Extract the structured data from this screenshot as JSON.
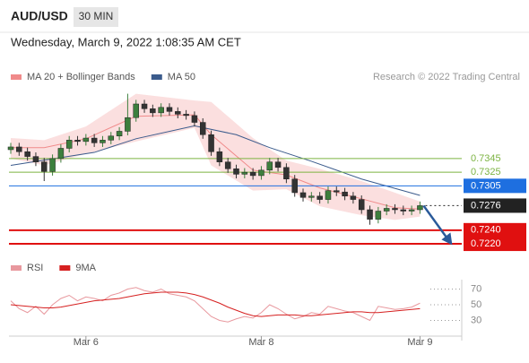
{
  "header": {
    "symbol": "AUD/USD",
    "interval": "30 MIN",
    "timestamp": "Wednesday, March 9, 2022 1:08:35 AM CET",
    "credit": "Research © 2022 Trading Central"
  },
  "chart_data": [
    {
      "type": "candlestick",
      "xlim": [
        0,
        54
      ],
      "ylim": [
        0.7203,
        0.7446
      ],
      "up_color": "#3d7f3d",
      "down_color": "#333333",
      "open": [
        0.7358,
        0.7362,
        0.7355,
        0.7348,
        0.734,
        0.7326,
        0.7345,
        0.736,
        0.7372,
        0.737,
        0.7375,
        0.7368,
        0.7372,
        0.7378,
        0.7385,
        0.7405,
        0.7425,
        0.7418,
        0.7412,
        0.742,
        0.7414,
        0.741,
        0.7408,
        0.7398,
        0.738,
        0.7355,
        0.734,
        0.733,
        0.7322,
        0.7325,
        0.732,
        0.7328,
        0.734,
        0.7332,
        0.7315,
        0.7295,
        0.7288,
        0.729,
        0.7285,
        0.7298,
        0.7296,
        0.729,
        0.7285,
        0.727,
        0.7256,
        0.7268,
        0.7272,
        0.727,
        0.7268,
        0.727
      ],
      "high": [
        0.7368,
        0.7368,
        0.7361,
        0.7354,
        0.7346,
        0.7351,
        0.7366,
        0.7378,
        0.7378,
        0.7381,
        0.7381,
        0.7378,
        0.7384,
        0.7391,
        0.744,
        0.7431,
        0.7431,
        0.7424,
        0.7426,
        0.7426,
        0.742,
        0.7416,
        0.7414,
        0.7404,
        0.7386,
        0.7361,
        0.7346,
        0.7336,
        0.7331,
        0.7331,
        0.7334,
        0.7346,
        0.7346,
        0.7338,
        0.7321,
        0.7301,
        0.7296,
        0.7296,
        0.7304,
        0.7304,
        0.7302,
        0.7296,
        0.7291,
        0.7276,
        0.7274,
        0.7278,
        0.7278,
        0.7276,
        0.7276,
        0.7282
      ],
      "low": [
        0.7352,
        0.7349,
        0.7342,
        0.7334,
        0.7312,
        0.732,
        0.7339,
        0.7354,
        0.7364,
        0.7364,
        0.7362,
        0.7362,
        0.7366,
        0.7372,
        0.7379,
        0.7399,
        0.7412,
        0.7406,
        0.7406,
        0.7408,
        0.7404,
        0.7402,
        0.7392,
        0.7374,
        0.7349,
        0.7334,
        0.7324,
        0.7316,
        0.7316,
        0.7314,
        0.7314,
        0.7322,
        0.7326,
        0.7309,
        0.7289,
        0.7282,
        0.7282,
        0.7279,
        0.7279,
        0.729,
        0.7284,
        0.7279,
        0.7264,
        0.7248,
        0.725,
        0.7262,
        0.7264,
        0.7262,
        0.7262,
        0.7264
      ],
      "close": [
        0.7362,
        0.7355,
        0.7348,
        0.734,
        0.7326,
        0.7345,
        0.736,
        0.7372,
        0.737,
        0.7375,
        0.7368,
        0.7372,
        0.7378,
        0.7385,
        0.7405,
        0.7425,
        0.7418,
        0.7412,
        0.742,
        0.7414,
        0.741,
        0.7408,
        0.7398,
        0.738,
        0.7355,
        0.734,
        0.733,
        0.7322,
        0.7325,
        0.732,
        0.7328,
        0.734,
        0.7332,
        0.7315,
        0.7295,
        0.7288,
        0.729,
        0.7285,
        0.7298,
        0.7296,
        0.729,
        0.7285,
        0.727,
        0.7256,
        0.7268,
        0.7272,
        0.727,
        0.7268,
        0.727,
        0.7276
      ],
      "series": [
        {
          "name": "MA 20 + Bollinger Bands",
          "color": "#f08a8a",
          "band_color": "#f9c9c9",
          "x": [
            0,
            4,
            9,
            15,
            22,
            24,
            29,
            33,
            37,
            42,
            46,
            49
          ],
          "values": [
            0.7361,
            0.7361,
            0.7374,
            0.7407,
            0.7409,
            0.738,
            0.7328,
            0.7321,
            0.7302,
            0.7286,
            0.7273,
            0.7271
          ],
          "upper": [
            0.7375,
            0.7372,
            0.7392,
            0.744,
            0.743,
            0.7428,
            0.7375,
            0.7342,
            0.733,
            0.7312,
            0.7295,
            0.7282
          ],
          "lower": [
            0.7345,
            0.7335,
            0.7352,
            0.737,
            0.739,
            0.7335,
            0.7298,
            0.73,
            0.7275,
            0.7262,
            0.7255,
            0.726
          ]
        },
        {
          "name": "MA 50",
          "color": "#3b5b8c",
          "x": [
            0,
            10,
            15,
            22,
            27,
            31,
            36,
            42,
            49
          ],
          "values": [
            0.7335,
            0.7354,
            0.7374,
            0.7393,
            0.738,
            0.7361,
            0.7341,
            0.7315,
            0.7291
          ]
        }
      ],
      "levels": [
        {
          "value": 0.7345,
          "label": "0.7345",
          "color": "#7cb342",
          "boxed": false,
          "style": "solid"
        },
        {
          "value": 0.7325,
          "label": "0.7325",
          "color": "#7cb342",
          "boxed": false,
          "style": "solid"
        },
        {
          "value": 0.7305,
          "label": "0.7305",
          "color": "#1e6fe0",
          "boxed": true,
          "style": "solid"
        },
        {
          "value": 0.7276,
          "label": "0.7276",
          "color": "#222222",
          "boxed": true,
          "style": "dotted"
        },
        {
          "value": 0.724,
          "label": "0.7240",
          "color": "#e01010",
          "boxed": true,
          "style": "solid"
        },
        {
          "value": 0.722,
          "label": "0.7220",
          "color": "#e01010",
          "boxed": true,
          "style": "solid"
        }
      ]
    },
    {
      "type": "line",
      "xlim": [
        0,
        54
      ],
      "ylim": [
        10,
        90
      ],
      "yticks": [
        70,
        50,
        30
      ],
      "xticks": [
        {
          "value": 9,
          "label": "Mar 6"
        },
        {
          "value": 30,
          "label": "Mar 8"
        },
        {
          "value": 49,
          "label": "Mar 9"
        }
      ],
      "series": [
        {
          "name": "RSI",
          "color": "#e8989e",
          "values": [
            55,
            45,
            40,
            48,
            38,
            50,
            58,
            62,
            55,
            60,
            58,
            55,
            62,
            65,
            70,
            72,
            68,
            66,
            70,
            64,
            62,
            60,
            55,
            45,
            35,
            30,
            28,
            32,
            35,
            33,
            40,
            50,
            45,
            38,
            32,
            35,
            40,
            38,
            48,
            45,
            42,
            40,
            35,
            30,
            48,
            46,
            44,
            45,
            47,
            52
          ]
        },
        {
          "name": "9MA",
          "color": "#d62020",
          "values": [
            50,
            49,
            48,
            47,
            46,
            46,
            47,
            49,
            51,
            53,
            55,
            56,
            57,
            58,
            60,
            62,
            64,
            65,
            66,
            66,
            66,
            65,
            63,
            60,
            56,
            52,
            47,
            43,
            39,
            36,
            35,
            36,
            37,
            37,
            37,
            36,
            36,
            37,
            38,
            39,
            40,
            41,
            41,
            40,
            40,
            41,
            42,
            43,
            44,
            45
          ]
        }
      ]
    }
  ]
}
